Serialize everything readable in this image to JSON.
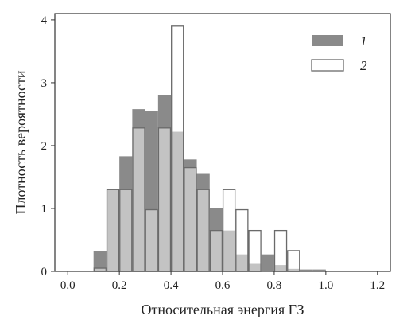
{
  "chart_data": {
    "type": "bar",
    "subtype": "overlapping-histogram",
    "xlabel": "Относительная энергия ГЗ",
    "ylabel": "Плотность вероятности",
    "xlim": [
      -0.05,
      1.25
    ],
    "ylim": [
      0,
      4.1
    ],
    "xticks": [
      "0.0",
      "0.2",
      "0.4",
      "0.6",
      "0.8",
      "1.0",
      "1.2"
    ],
    "yticks": [
      "0",
      "1",
      "2",
      "3",
      "4"
    ],
    "bin_width": 0.05,
    "bin_starts": [
      0.0,
      0.05,
      0.1,
      0.15,
      0.2,
      0.25,
      0.3,
      0.35,
      0.4,
      0.45,
      0.5,
      0.55,
      0.6,
      0.65,
      0.7,
      0.75,
      0.8,
      0.85,
      0.9,
      0.95,
      1.0,
      1.05,
      1.1,
      1.15
    ],
    "series": [
      {
        "name": "1",
        "color": "#8a8a8a",
        "values": [
          0.01,
          0.01,
          0.32,
          1.3,
          1.83,
          2.58,
          2.55,
          2.8,
          2.22,
          1.78,
          1.55,
          1.0,
          0.65,
          0.27,
          0.12,
          0.27,
          0.1,
          0.04,
          0.03,
          0.03,
          0.0,
          0.01,
          0.01,
          0.0
        ]
      },
      {
        "name": "2",
        "color": "#ffffff",
        "values": [
          0.0,
          0.0,
          0.05,
          1.3,
          1.3,
          2.28,
          0.98,
          2.28,
          3.9,
          1.65,
          1.3,
          0.65,
          1.3,
          0.98,
          0.65,
          0.0,
          0.65,
          0.33,
          0.0,
          0.0,
          0.0,
          0.0,
          0.0,
          0.0
        ]
      }
    ],
    "overlap_color": "#c3c3c3",
    "legend": {
      "position": "top-right",
      "entries": [
        "1",
        "2"
      ]
    }
  }
}
